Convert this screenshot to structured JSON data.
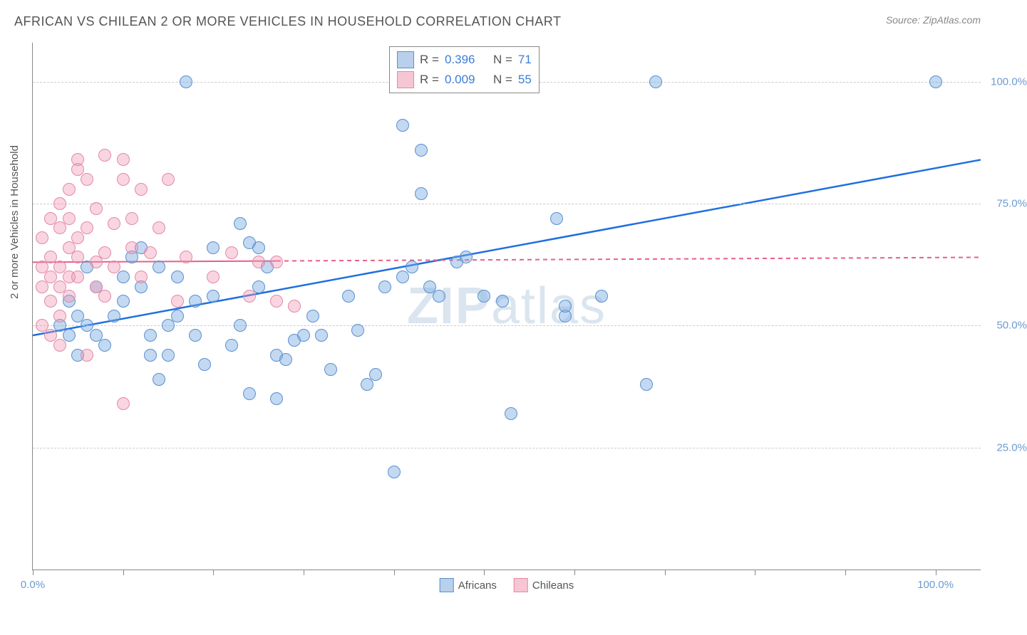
{
  "header": {
    "title": "AFRICAN VS CHILEAN 2 OR MORE VEHICLES IN HOUSEHOLD CORRELATION CHART",
    "source": "Source: ZipAtlas.com"
  },
  "watermark": {
    "bold": "ZIP",
    "rest": "atlas"
  },
  "chart": {
    "type": "scatter",
    "y_axis_title": "2 or more Vehicles in Household",
    "xlim": [
      0,
      105
    ],
    "ylim": [
      0,
      108
    ],
    "y_ticks": [
      {
        "value": 25,
        "label": "25.0%",
        "color": "#6b9bd1"
      },
      {
        "value": 50,
        "label": "50.0%",
        "color": "#6b9bd1"
      },
      {
        "value": 75,
        "label": "75.0%",
        "color": "#6b9bd1"
      },
      {
        "value": 100,
        "label": "100.0%",
        "color": "#6b9bd1"
      }
    ],
    "x_ticks_at": [
      0,
      10,
      20,
      30,
      40,
      50,
      60,
      70,
      80,
      90,
      100
    ],
    "x_labels": [
      {
        "value": 0,
        "label": "0.0%",
        "color": "#6b9bd1"
      },
      {
        "value": 100,
        "label": "100.0%",
        "color": "#6b9bd1"
      }
    ],
    "grid_color": "#cccccc",
    "background_color": "#ffffff",
    "marker_radius": 9,
    "marker_border_width": 1.5,
    "legend_top": {
      "rows": [
        {
          "swatch_fill": "#b8d0ec",
          "swatch_border": "#5a8fd0",
          "r_label": "R =",
          "r_value": "0.396",
          "n_label": "N =",
          "n_value": "71",
          "value_color": "#3b7dd8"
        },
        {
          "swatch_fill": "#f6c6d4",
          "swatch_border": "#e28aa4",
          "r_label": "R =",
          "r_value": "0.009",
          "n_label": "N =",
          "n_value": "55",
          "value_color": "#3b7dd8"
        }
      ]
    },
    "legend_bottom": {
      "items": [
        {
          "swatch_fill": "#b8d0ec",
          "swatch_border": "#5a8fd0",
          "label": "Africans"
        },
        {
          "swatch_fill": "#f6c6d4",
          "swatch_border": "#e28aa4",
          "label": "Chileans"
        }
      ]
    },
    "series": [
      {
        "name": "Africans",
        "fill": "rgba(120,170,225,0.45)",
        "stroke": "#5a8fd0",
        "trend": {
          "x1": 0,
          "y1": 48,
          "x2": 105,
          "y2": 84,
          "solid_until_x": 105,
          "color": "#1f6fe0",
          "width": 2.5
        },
        "points": [
          [
            17,
            100
          ],
          [
            69,
            100
          ],
          [
            100,
            100
          ],
          [
            41,
            91
          ],
          [
            43,
            86
          ],
          [
            23,
            71
          ],
          [
            24,
            67
          ],
          [
            43,
            77
          ],
          [
            41,
            60
          ],
          [
            42,
            62
          ],
          [
            58,
            72
          ],
          [
            59,
            52
          ],
          [
            59,
            54
          ],
          [
            12,
            58
          ],
          [
            13,
            44
          ],
          [
            13,
            48
          ],
          [
            14,
            39
          ],
          [
            15,
            50
          ],
          [
            15,
            44
          ],
          [
            16,
            60
          ],
          [
            18,
            55
          ],
          [
            18,
            48
          ],
          [
            19,
            42
          ],
          [
            20,
            56
          ],
          [
            20,
            66
          ],
          [
            22,
            46
          ],
          [
            23,
            50
          ],
          [
            24,
            36
          ],
          [
            25,
            66
          ],
          [
            25,
            58
          ],
          [
            26,
            62
          ],
          [
            27,
            44
          ],
          [
            28,
            43
          ],
          [
            29,
            47
          ],
          [
            30,
            48
          ],
          [
            31,
            52
          ],
          [
            32,
            48
          ],
          [
            33,
            41
          ],
          [
            35,
            56
          ],
          [
            36,
            49
          ],
          [
            37,
            38
          ],
          [
            38,
            40
          ],
          [
            39,
            58
          ],
          [
            40,
            20
          ],
          [
            44,
            58
          ],
          [
            45,
            56
          ],
          [
            47,
            63
          ],
          [
            48,
            64
          ],
          [
            50,
            56
          ],
          [
            52,
            55
          ],
          [
            53,
            32
          ],
          [
            11,
            64
          ],
          [
            10,
            55
          ],
          [
            10,
            60
          ],
          [
            9,
            52
          ],
          [
            8,
            46
          ],
          [
            7,
            48
          ],
          [
            7,
            58
          ],
          [
            6,
            50
          ],
          [
            6,
            62
          ],
          [
            5,
            52
          ],
          [
            5,
            44
          ],
          [
            4,
            55
          ],
          [
            4,
            48
          ],
          [
            3,
            50
          ],
          [
            12,
            66
          ],
          [
            14,
            62
          ],
          [
            16,
            52
          ],
          [
            63,
            56
          ],
          [
            68,
            38
          ],
          [
            27,
            35
          ]
        ]
      },
      {
        "name": "Chileans",
        "fill": "rgba(240,150,180,0.40)",
        "stroke": "#e28aa4",
        "trend": {
          "x1": 0,
          "y1": 63,
          "x2": 105,
          "y2": 64,
          "solid_until_x": 27,
          "color": "#e85f88",
          "width": 2
        },
        "points": [
          [
            1,
            62
          ],
          [
            1,
            50
          ],
          [
            1,
            58
          ],
          [
            1,
            68
          ],
          [
            2,
            60
          ],
          [
            2,
            72
          ],
          [
            2,
            55
          ],
          [
            2,
            64
          ],
          [
            2,
            48
          ],
          [
            3,
            70
          ],
          [
            3,
            75
          ],
          [
            3,
            58
          ],
          [
            3,
            62
          ],
          [
            3,
            52
          ],
          [
            3,
            46
          ],
          [
            4,
            78
          ],
          [
            4,
            60
          ],
          [
            4,
            66
          ],
          [
            4,
            56
          ],
          [
            4,
            72
          ],
          [
            5,
            82
          ],
          [
            5,
            84
          ],
          [
            5,
            68
          ],
          [
            5,
            60
          ],
          [
            5,
            64
          ],
          [
            6,
            80
          ],
          [
            6,
            70
          ],
          [
            6,
            44
          ],
          [
            7,
            74
          ],
          [
            7,
            63
          ],
          [
            7,
            58
          ],
          [
            8,
            85
          ],
          [
            8,
            65
          ],
          [
            8,
            56
          ],
          [
            9,
            71
          ],
          [
            9,
            62
          ],
          [
            10,
            84
          ],
          [
            10,
            80
          ],
          [
            10,
            34
          ],
          [
            11,
            72
          ],
          [
            11,
            66
          ],
          [
            12,
            78
          ],
          [
            12,
            60
          ],
          [
            13,
            65
          ],
          [
            14,
            70
          ],
          [
            15,
            80
          ],
          [
            16,
            55
          ],
          [
            17,
            64
          ],
          [
            20,
            60
          ],
          [
            22,
            65
          ],
          [
            24,
            56
          ],
          [
            25,
            63
          ],
          [
            27,
            55
          ],
          [
            27,
            63
          ],
          [
            29,
            54
          ]
        ]
      }
    ]
  }
}
